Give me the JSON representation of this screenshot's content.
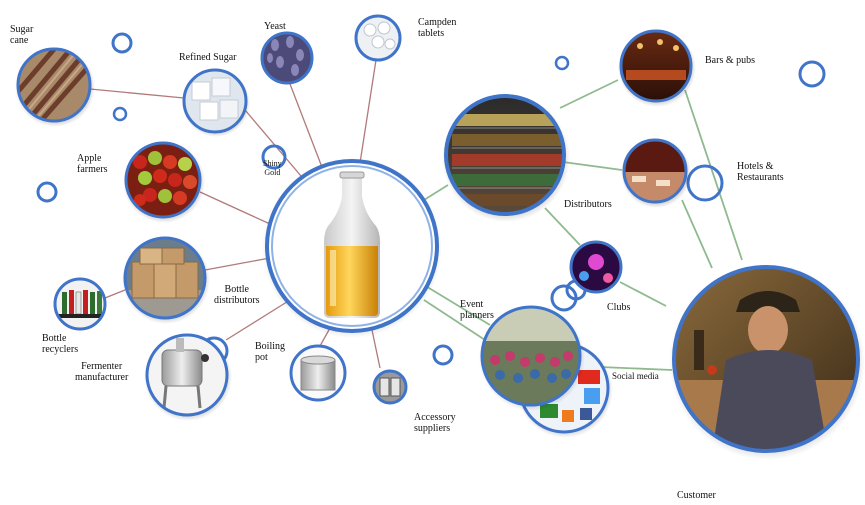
{
  "nodes": {
    "bottle": "",
    "sugar_cane": "Sugar\ncane",
    "refined_sugar": "Refined Sugar",
    "yeast": "Yeast",
    "campden": "Campden\ntablets",
    "shiny_gold": "Shiny\nGold",
    "apple_farmers": "Apple\nfarmers",
    "bottle_distributors": "Bottle\ndistributors",
    "bottle_recyclers": "Bottle\nrecyclers",
    "fermenter": "Fermenter\nmanufacturer",
    "boiling_pot": "Boiling\npot",
    "accessory": "Accessory\nsuppliers",
    "distributors": "Distributors",
    "bars": "Bars & pubs",
    "hotels": "Hotels &\nRestaurants",
    "clubs": "Clubs",
    "event_planners": "Event\nplanners",
    "social_media": "Social media",
    "customer": "Customer"
  },
  "social_icons": [
    "digg",
    "YouTube",
    "Y",
    "tbbbr",
    "b",
    "y"
  ],
  "colors": {
    "ring": "#3f74c9",
    "ring_light": "#8fb2e6",
    "link_red": "#b07a7a",
    "link_green": "#8fba8f"
  }
}
